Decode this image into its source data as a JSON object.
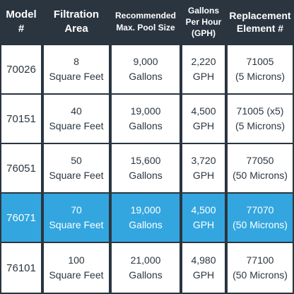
{
  "headers": [
    [
      "Model",
      "#"
    ],
    [
      "Filtration",
      "Area"
    ],
    [
      "Recommended",
      "Max. Pool Size"
    ],
    [
      "Gallons",
      "Per Hour",
      "(GPH)"
    ],
    [
      "Replacement",
      "Element #"
    ]
  ],
  "rows": [
    {
      "model": "70026",
      "area": [
        "8",
        "Square Feet"
      ],
      "pool": [
        "9,000",
        "Gallons"
      ],
      "gph": [
        "2,220",
        "GPH"
      ],
      "element": [
        "71005",
        "(5 Microns)"
      ]
    },
    {
      "model": "70151",
      "area": [
        "40",
        "Square Feet"
      ],
      "pool": [
        "19,000",
        "Gallons"
      ],
      "gph": [
        "4,500",
        "GPH"
      ],
      "element": [
        "71005 (x5)",
        "(5 Microns)"
      ]
    },
    {
      "model": "76051",
      "area": [
        "50",
        "Square Feet"
      ],
      "pool": [
        "15,600",
        "Gallons"
      ],
      "gph": [
        "3,720",
        "GPH"
      ],
      "element": [
        "77050",
        "(50 Microns)"
      ]
    },
    {
      "model": "76071",
      "area": [
        "70",
        "Square Feet"
      ],
      "pool": [
        "19,000",
        "Gallons"
      ],
      "gph": [
        "4,500",
        "GPH"
      ],
      "element": [
        "77070",
        "(50 Microns)"
      ]
    },
    {
      "model": "76101",
      "area": [
        "100",
        "Square Feet"
      ],
      "pool": [
        "21,000",
        "Gallons"
      ],
      "gph": [
        "4,980",
        "GPH"
      ],
      "element": [
        "77100",
        "(50 Microns)"
      ]
    }
  ],
  "highlight_row_index": 3,
  "colors": {
    "header_bg": "#2b3540",
    "highlight": "#33a6df",
    "text": "#2c3640"
  }
}
